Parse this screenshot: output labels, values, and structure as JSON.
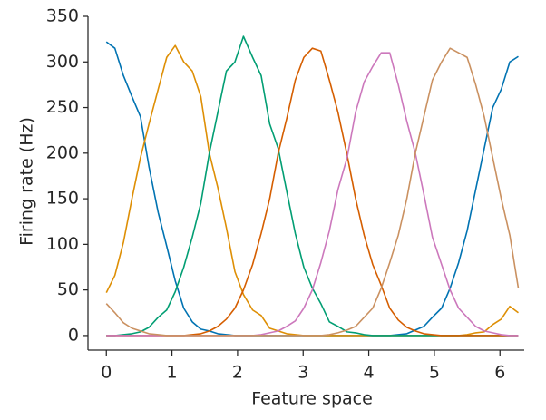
{
  "chart_data": {
    "type": "line",
    "xlabel": "Feature space",
    "ylabel": "Firing rate (Hz)",
    "x": [
      0,
      0.13,
      0.26,
      0.39,
      0.52,
      0.65,
      0.79,
      0.92,
      1.05,
      1.18,
      1.31,
      1.44,
      1.57,
      1.7,
      1.83,
      1.96,
      2.09,
      2.23,
      2.36,
      2.49,
      2.62,
      2.75,
      2.88,
      3.01,
      3.14,
      3.27,
      3.4,
      3.53,
      3.67,
      3.8,
      3.93,
      4.06,
      4.19,
      4.32,
      4.45,
      4.58,
      4.71,
      4.84,
      4.97,
      5.11,
      5.24,
      5.37,
      5.5,
      5.63,
      5.76,
      5.89,
      6.02,
      6.15,
      6.28
    ],
    "series": [
      {
        "color": "#0173b2",
        "values": [
          322,
          315,
          285,
          262,
          240,
          185,
          135,
          98,
          60,
          30,
          15,
          7,
          5,
          2,
          1,
          0,
          0,
          0,
          0,
          0,
          0,
          0,
          0,
          0,
          0,
          0,
          0,
          0,
          0,
          0,
          0,
          0,
          0,
          0,
          1,
          2,
          6,
          10,
          20,
          30,
          52,
          80,
          115,
          160,
          205,
          250,
          270,
          300,
          306
        ]
      },
      {
        "color": "#de8f05",
        "values": [
          47,
          66,
          102,
          150,
          195,
          232,
          270,
          305,
          318,
          300,
          290,
          262,
          200,
          162,
          118,
          70,
          45,
          28,
          22,
          8,
          5,
          2,
          1,
          0,
          0,
          0,
          0,
          0,
          0,
          0,
          0,
          0,
          0,
          0,
          0,
          0,
          0,
          0,
          0,
          0,
          0,
          0,
          1,
          3,
          4,
          12,
          18,
          32,
          25
        ]
      },
      {
        "color": "#029e73",
        "values": [
          0,
          0,
          1,
          2,
          4,
          9,
          20,
          28,
          48,
          75,
          108,
          145,
          200,
          245,
          290,
          300,
          328,
          305,
          285,
          232,
          205,
          158,
          112,
          75,
          52,
          35,
          15,
          10,
          4,
          3,
          1,
          0,
          0,
          0,
          0,
          0,
          0,
          0,
          0,
          0,
          0,
          0,
          0,
          0,
          0,
          0,
          0,
          0,
          0
        ]
      },
      {
        "color": "#d55e00",
        "values": [
          0,
          0,
          0,
          0,
          0,
          0,
          0,
          0,
          0,
          0,
          1,
          2,
          5,
          10,
          18,
          30,
          50,
          78,
          112,
          150,
          200,
          238,
          280,
          305,
          315,
          312,
          280,
          245,
          198,
          150,
          110,
          78,
          55,
          30,
          17,
          9,
          5,
          2,
          1,
          0,
          0,
          0,
          0,
          0,
          0,
          0,
          0,
          0,
          0
        ]
      },
      {
        "color": "#cc78bc",
        "values": [
          0,
          0,
          0,
          0,
          0,
          0,
          0,
          0,
          0,
          0,
          0,
          0,
          0,
          0,
          0,
          0,
          0,
          0,
          1,
          3,
          5,
          10,
          16,
          30,
          50,
          80,
          115,
          160,
          195,
          245,
          278,
          295,
          310,
          310,
          275,
          235,
          200,
          155,
          108,
          78,
          50,
          30,
          20,
          10,
          5,
          3,
          1,
          0,
          0
        ]
      },
      {
        "color": "#ca9161",
        "values": [
          35,
          25,
          14,
          8,
          5,
          2,
          1,
          0,
          0,
          0,
          0,
          0,
          0,
          0,
          0,
          0,
          0,
          0,
          0,
          0,
          0,
          0,
          0,
          0,
          0,
          0,
          1,
          3,
          6,
          10,
          20,
          30,
          52,
          80,
          110,
          150,
          200,
          240,
          280,
          300,
          315,
          310,
          305,
          275,
          240,
          195,
          150,
          110,
          52
        ]
      }
    ],
    "xlim": [
      -0.28,
      6.37
    ],
    "ylim": [
      -16,
      350
    ],
    "xticks": [
      0,
      1,
      2,
      3,
      4,
      5,
      6
    ],
    "yticks": [
      0,
      50,
      100,
      150,
      200,
      250,
      300,
      350
    ]
  }
}
